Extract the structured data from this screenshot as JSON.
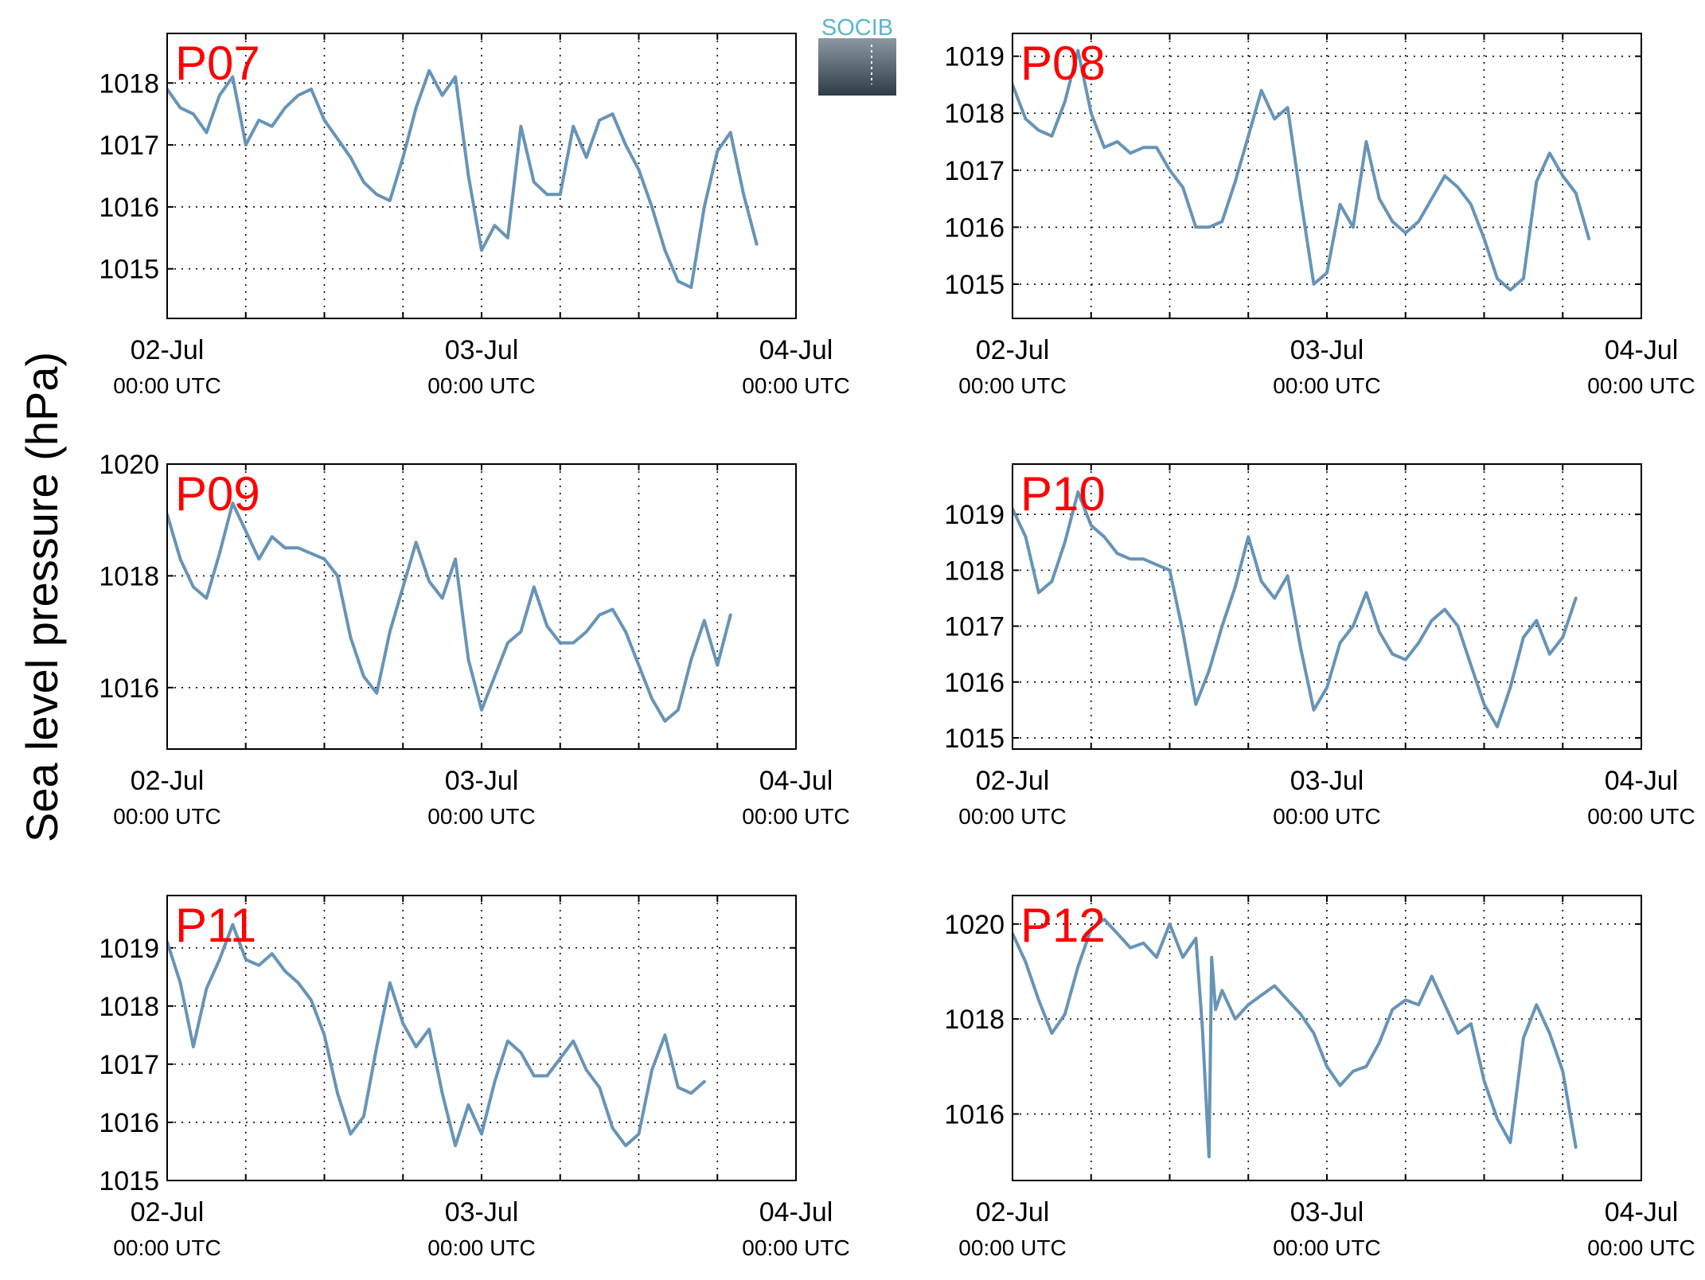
{
  "ylabel": "Sea level pressure (hPa)",
  "logo": {
    "text": "SOCIB",
    "text_color": "#5ab6cc",
    "top_color": "#8c98a0",
    "bottom_color": "#2c3c48"
  },
  "colors": {
    "line": "#6794b7",
    "panel_label": "#ff0000",
    "grid": "#000000",
    "axes": "#000000"
  },
  "x_tick_labels": [
    {
      "date": "02-Jul",
      "time": "00:00 UTC"
    },
    {
      "date": "03-Jul",
      "time": "00:00 UTC"
    },
    {
      "date": "04-Jul",
      "time": "00:00 UTC"
    }
  ],
  "chart_data": [
    {
      "type": "line",
      "label": "P07",
      "ylim": [
        1014.2,
        1018.8
      ],
      "yticks": [
        1015,
        1016,
        1017,
        1018
      ],
      "x_unit": "hours since 02-Jul 00:00 UTC",
      "xlim": [
        0,
        48
      ],
      "grid": true,
      "series": [
        {
          "x": [
            0,
            1,
            2,
            3,
            4,
            5,
            6,
            7,
            8,
            9,
            10,
            11,
            12,
            13,
            14,
            15,
            16,
            17,
            18,
            19,
            20,
            21,
            22,
            23,
            24,
            25,
            26,
            27,
            28,
            29,
            30,
            31,
            32,
            33,
            34,
            35,
            36,
            37,
            38,
            39,
            40,
            41,
            42,
            43,
            44,
            45,
            46,
            47,
            48
          ],
          "y": [
            1017.9,
            1017.6,
            1017.5,
            1017.2,
            1017.8,
            1018.1,
            1017.0,
            1017.4,
            1017.3,
            1017.6,
            1017.8,
            1017.9,
            1017.4,
            1017.1,
            1016.8,
            1016.4,
            1016.2,
            1016.1,
            1016.8,
            1017.6,
            1018.2,
            1017.8,
            1018.1,
            1016.5,
            1015.3,
            1015.7,
            1015.5,
            1017.3,
            1016.4,
            1016.2,
            1016.2,
            1017.3,
            1016.8,
            1017.4,
            1017.5,
            1017.0,
            1016.6,
            1016.0,
            1015.3,
            1014.8,
            1014.7,
            1016.0,
            1016.9,
            1017.2,
            1016.2,
            1015.4,
            null,
            null,
            null
          ]
        }
      ]
    },
    {
      "type": "line",
      "label": "P08",
      "ylim": [
        1014.4,
        1019.4
      ],
      "yticks": [
        1015,
        1016,
        1017,
        1018,
        1019
      ],
      "x_unit": "hours since 02-Jul 00:00 UTC",
      "xlim": [
        0,
        48
      ],
      "grid": true,
      "series": [
        {
          "x": [
            0,
            1,
            2,
            3,
            4,
            5,
            6,
            7,
            8,
            9,
            10,
            11,
            12,
            13,
            14,
            15,
            16,
            17,
            18,
            19,
            20,
            21,
            22,
            23,
            24,
            25,
            26,
            27,
            28,
            29,
            30,
            31,
            32,
            33,
            34,
            35,
            36,
            37,
            38,
            39,
            40,
            41,
            42,
            43,
            44,
            45,
            46,
            47,
            48
          ],
          "y": [
            1018.5,
            1017.9,
            1017.7,
            1017.6,
            1018.2,
            1019.1,
            1018.0,
            1017.4,
            1017.5,
            1017.3,
            1017.4,
            1017.4,
            1017.0,
            1016.7,
            1016.0,
            1016.0,
            1016.1,
            1016.8,
            1017.6,
            1018.4,
            1017.9,
            1018.1,
            1016.5,
            1015.0,
            1015.2,
            1016.4,
            1016.0,
            1017.5,
            1016.5,
            1016.1,
            1015.9,
            1016.1,
            1016.5,
            1016.9,
            1016.7,
            1016.4,
            1015.8,
            1015.1,
            1014.9,
            1015.1,
            1016.8,
            1017.3,
            1016.9,
            1016.6,
            1015.8,
            null,
            null,
            null,
            null
          ]
        }
      ]
    },
    {
      "type": "line",
      "label": "P09",
      "ylim": [
        1014.9,
        1020.0
      ],
      "yticks": [
        1016,
        1018,
        1020
      ],
      "x_unit": "hours since 02-Jul 00:00 UTC",
      "xlim": [
        0,
        48
      ],
      "grid": true,
      "series": [
        {
          "x": [
            0,
            1,
            2,
            3,
            4,
            5,
            6,
            7,
            8,
            9,
            10,
            11,
            12,
            13,
            14,
            15,
            16,
            17,
            18,
            19,
            20,
            21,
            22,
            23,
            24,
            25,
            26,
            27,
            28,
            29,
            30,
            31,
            32,
            33,
            34,
            35,
            36,
            37,
            38,
            39,
            40,
            41,
            42,
            43,
            44,
            45,
            46,
            47,
            48
          ],
          "y": [
            1019.1,
            1018.3,
            1017.8,
            1017.6,
            1018.4,
            1019.3,
            1018.8,
            1018.3,
            1018.7,
            1018.5,
            1018.5,
            1018.4,
            1018.3,
            1018.0,
            1016.9,
            1016.2,
            1015.9,
            1017.0,
            1017.8,
            1018.6,
            1017.9,
            1017.6,
            1018.3,
            1016.5,
            1015.6,
            1016.2,
            1016.8,
            1017.0,
            1017.8,
            1017.1,
            1016.8,
            1016.8,
            1017.0,
            1017.3,
            1017.4,
            1017.0,
            1016.4,
            1015.8,
            1015.4,
            1015.6,
            1016.5,
            1017.2,
            1016.4,
            1017.3,
            null,
            null,
            null,
            null,
            null
          ]
        }
      ]
    },
    {
      "type": "line",
      "label": "P10",
      "ylim": [
        1014.8,
        1019.9
      ],
      "yticks": [
        1015,
        1016,
        1017,
        1018,
        1019
      ],
      "x_unit": "hours since 02-Jul 00:00 UTC",
      "xlim": [
        0,
        48
      ],
      "grid": true,
      "series": [
        {
          "x": [
            0,
            1,
            2,
            3,
            4,
            5,
            6,
            7,
            8,
            9,
            10,
            11,
            12,
            13,
            14,
            15,
            16,
            17,
            18,
            19,
            20,
            21,
            22,
            23,
            24,
            25,
            26,
            27,
            28,
            29,
            30,
            31,
            32,
            33,
            34,
            35,
            36,
            37,
            38,
            39,
            40,
            41,
            42,
            43,
            44,
            45,
            46,
            47,
            48
          ],
          "y": [
            1019.1,
            1018.6,
            1017.6,
            1017.8,
            1018.5,
            1019.4,
            1018.8,
            1018.6,
            1018.3,
            1018.2,
            1018.2,
            1018.1,
            1018.0,
            1016.9,
            1015.6,
            1016.2,
            1017.0,
            1017.7,
            1018.6,
            1017.8,
            1017.5,
            1017.9,
            1016.6,
            1015.5,
            1015.9,
            1016.7,
            1017.0,
            1017.6,
            1016.9,
            1016.5,
            1016.4,
            1016.7,
            1017.1,
            1017.3,
            1017.0,
            1016.3,
            1015.6,
            1015.2,
            1015.9,
            1016.8,
            1017.1,
            1016.5,
            1016.8,
            1017.5,
            null,
            null,
            null,
            null,
            null
          ]
        }
      ]
    },
    {
      "type": "line",
      "label": "P11",
      "ylim": [
        1015.0,
        1019.9
      ],
      "yticks": [
        1015,
        1016,
        1017,
        1018,
        1019
      ],
      "x_unit": "hours since 02-Jul 00:00 UTC",
      "xlim": [
        0,
        48
      ],
      "grid": true,
      "series": [
        {
          "x": [
            0,
            1,
            2,
            3,
            4,
            5,
            6,
            7,
            8,
            9,
            10,
            11,
            12,
            13,
            14,
            15,
            16,
            17,
            18,
            19,
            20,
            21,
            22,
            23,
            24,
            25,
            26,
            27,
            28,
            29,
            30,
            31,
            32,
            33,
            34,
            35,
            36,
            37,
            38,
            39,
            40,
            41,
            42,
            43,
            44,
            45,
            46,
            47,
            48
          ],
          "y": [
            1019.1,
            1018.4,
            1017.3,
            1018.3,
            1018.8,
            1019.4,
            1018.8,
            1018.7,
            1018.9,
            1018.6,
            1018.4,
            1018.1,
            1017.5,
            1016.5,
            1015.8,
            1016.1,
            1017.3,
            1018.4,
            1017.7,
            1017.3,
            1017.6,
            1016.5,
            1015.6,
            1016.3,
            1015.8,
            1016.7,
            1017.4,
            1017.2,
            1016.8,
            1016.8,
            1017.1,
            1017.4,
            1016.9,
            1016.6,
            1015.9,
            1015.6,
            1015.8,
            1016.9,
            1017.5,
            1016.6,
            1016.5,
            1016.7,
            null,
            null,
            null,
            null,
            null,
            null,
            null
          ]
        }
      ]
    },
    {
      "type": "line",
      "label": "P12",
      "ylim": [
        1014.6,
        1020.6
      ],
      "yticks": [
        1016,
        1018,
        1020
      ],
      "x_unit": "hours since 02-Jul 00:00 UTC",
      "xlim": [
        0,
        48
      ],
      "grid": true,
      "series": [
        {
          "x": [
            0,
            1,
            2,
            3,
            4,
            5,
            6,
            7,
            8,
            9,
            10,
            11,
            12,
            13,
            14,
            14.5,
            15,
            15.2,
            15.5,
            16,
            17,
            18,
            19,
            20,
            21,
            22,
            23,
            24,
            25,
            26,
            27,
            28,
            29,
            30,
            31,
            32,
            33,
            34,
            35,
            36,
            37,
            38,
            39,
            40,
            41,
            42,
            43,
            44,
            45,
            46,
            47,
            48
          ],
          "y": [
            1019.8,
            1019.2,
            1018.4,
            1017.7,
            1018.1,
            1019.1,
            1019.9,
            1020.1,
            1019.8,
            1019.5,
            1019.6,
            1019.3,
            1020.0,
            1019.3,
            1019.7,
            1017.8,
            1015.1,
            1019.3,
            1018.2,
            1018.6,
            1018.0,
            1018.3,
            1018.5,
            1018.7,
            1018.4,
            1018.1,
            1017.7,
            1017.0,
            1016.6,
            1016.9,
            1017.0,
            1017.5,
            1018.2,
            1018.4,
            1018.3,
            1018.9,
            1018.3,
            1017.7,
            1017.9,
            1016.7,
            1015.9,
            1015.4,
            1017.6,
            1018.3,
            1017.7,
            1016.9,
            1015.3,
            null,
            null,
            null,
            null,
            null
          ]
        }
      ]
    }
  ]
}
